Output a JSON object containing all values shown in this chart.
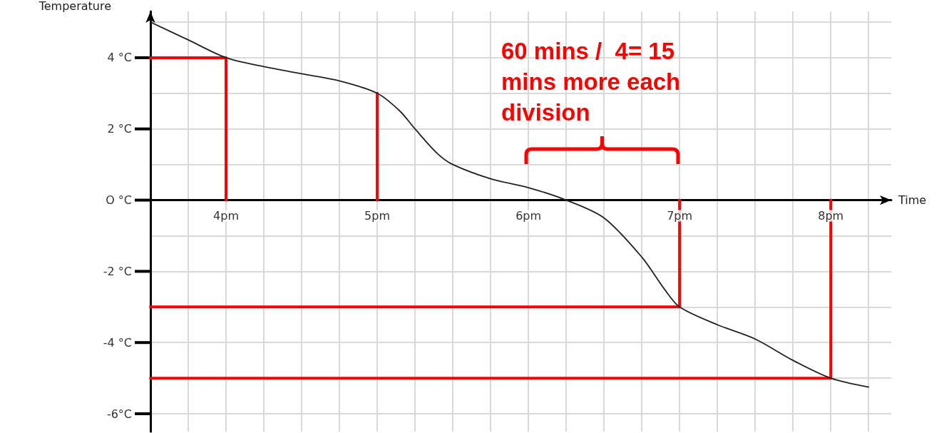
{
  "chart_data": {
    "type": "line",
    "xlabel": "Time",
    "ylabel": "Temperature",
    "xlim": [
      3.5,
      8.4
    ],
    "ylim": [
      -6.5,
      5.3
    ],
    "xticks": [
      {
        "value": 3.75,
        "label": null
      },
      {
        "value": 4,
        "label": "4pm"
      },
      {
        "value": 4.25,
        "label": null
      },
      {
        "value": 4.5,
        "label": null
      },
      {
        "value": 4.75,
        "label": null
      },
      {
        "value": 5,
        "label": "5pm"
      },
      {
        "value": 5.25,
        "label": null
      },
      {
        "value": 5.5,
        "label": null
      },
      {
        "value": 5.75,
        "label": null
      },
      {
        "value": 6,
        "label": "6pm"
      },
      {
        "value": 6.25,
        "label": null
      },
      {
        "value": 6.5,
        "label": null
      },
      {
        "value": 6.75,
        "label": null
      },
      {
        "value": 7,
        "label": "7pm"
      },
      {
        "value": 7.25,
        "label": null
      },
      {
        "value": 7.5,
        "label": null
      },
      {
        "value": 7.75,
        "label": null
      },
      {
        "value": 8,
        "label": "8pm"
      },
      {
        "value": 8.25,
        "label": null
      }
    ],
    "yticks": [
      {
        "value": -6,
        "label": "-6°C"
      },
      {
        "value": -5,
        "label": null
      },
      {
        "value": -4,
        "label": "-4 °C"
      },
      {
        "value": -3,
        "label": null
      },
      {
        "value": -2,
        "label": "-2 °C"
      },
      {
        "value": -1,
        "label": null
      },
      {
        "value": 0,
        "label": "O °C"
      },
      {
        "value": 1,
        "label": null
      },
      {
        "value": 2,
        "label": "2 °C"
      },
      {
        "value": 3,
        "label": null
      },
      {
        "value": 4,
        "label": "4 °C"
      },
      {
        "value": 5,
        "label": null
      }
    ],
    "grid": true,
    "marker": "none",
    "line_style": "solid",
    "series": [
      {
        "color": "#222222",
        "x": [
          3.5,
          3.75,
          4,
          4.25,
          4.5,
          4.75,
          5,
          5.15,
          5.25,
          5.4,
          5.5,
          5.75,
          6,
          6.25,
          6.5,
          6.75,
          6.9,
          7,
          7.25,
          7.5,
          7.75,
          8,
          8.25
        ],
        "values": [
          5.0,
          4.5,
          4.0,
          3.75,
          3.55,
          3.35,
          3.0,
          2.5,
          2.0,
          1.3,
          1.0,
          0.6,
          0.35,
          0.0,
          -0.5,
          -1.6,
          -2.5,
          -3.0,
          -3.5,
          -3.9,
          -4.5,
          -5.0,
          -5.25
        ]
      },
      {
        "color": "#ff0000",
        "x": [
          3.5,
          4,
          4
        ],
        "values": [
          4,
          4,
          0
        ]
      },
      {
        "color": "#ff0000",
        "x": [
          5,
          5
        ],
        "values": [
          3,
          0
        ]
      },
      {
        "color": "#ff0000",
        "x": [
          3.5,
          7,
          7
        ],
        "values": [
          -3,
          -3,
          0
        ]
      },
      {
        "color": "#ff0000",
        "x": [
          3.5,
          8,
          8
        ],
        "values": [
          -5,
          -5,
          0
        ]
      }
    ],
    "annotations": [
      "60 mins /  4= 15 mins more each division"
    ]
  }
}
